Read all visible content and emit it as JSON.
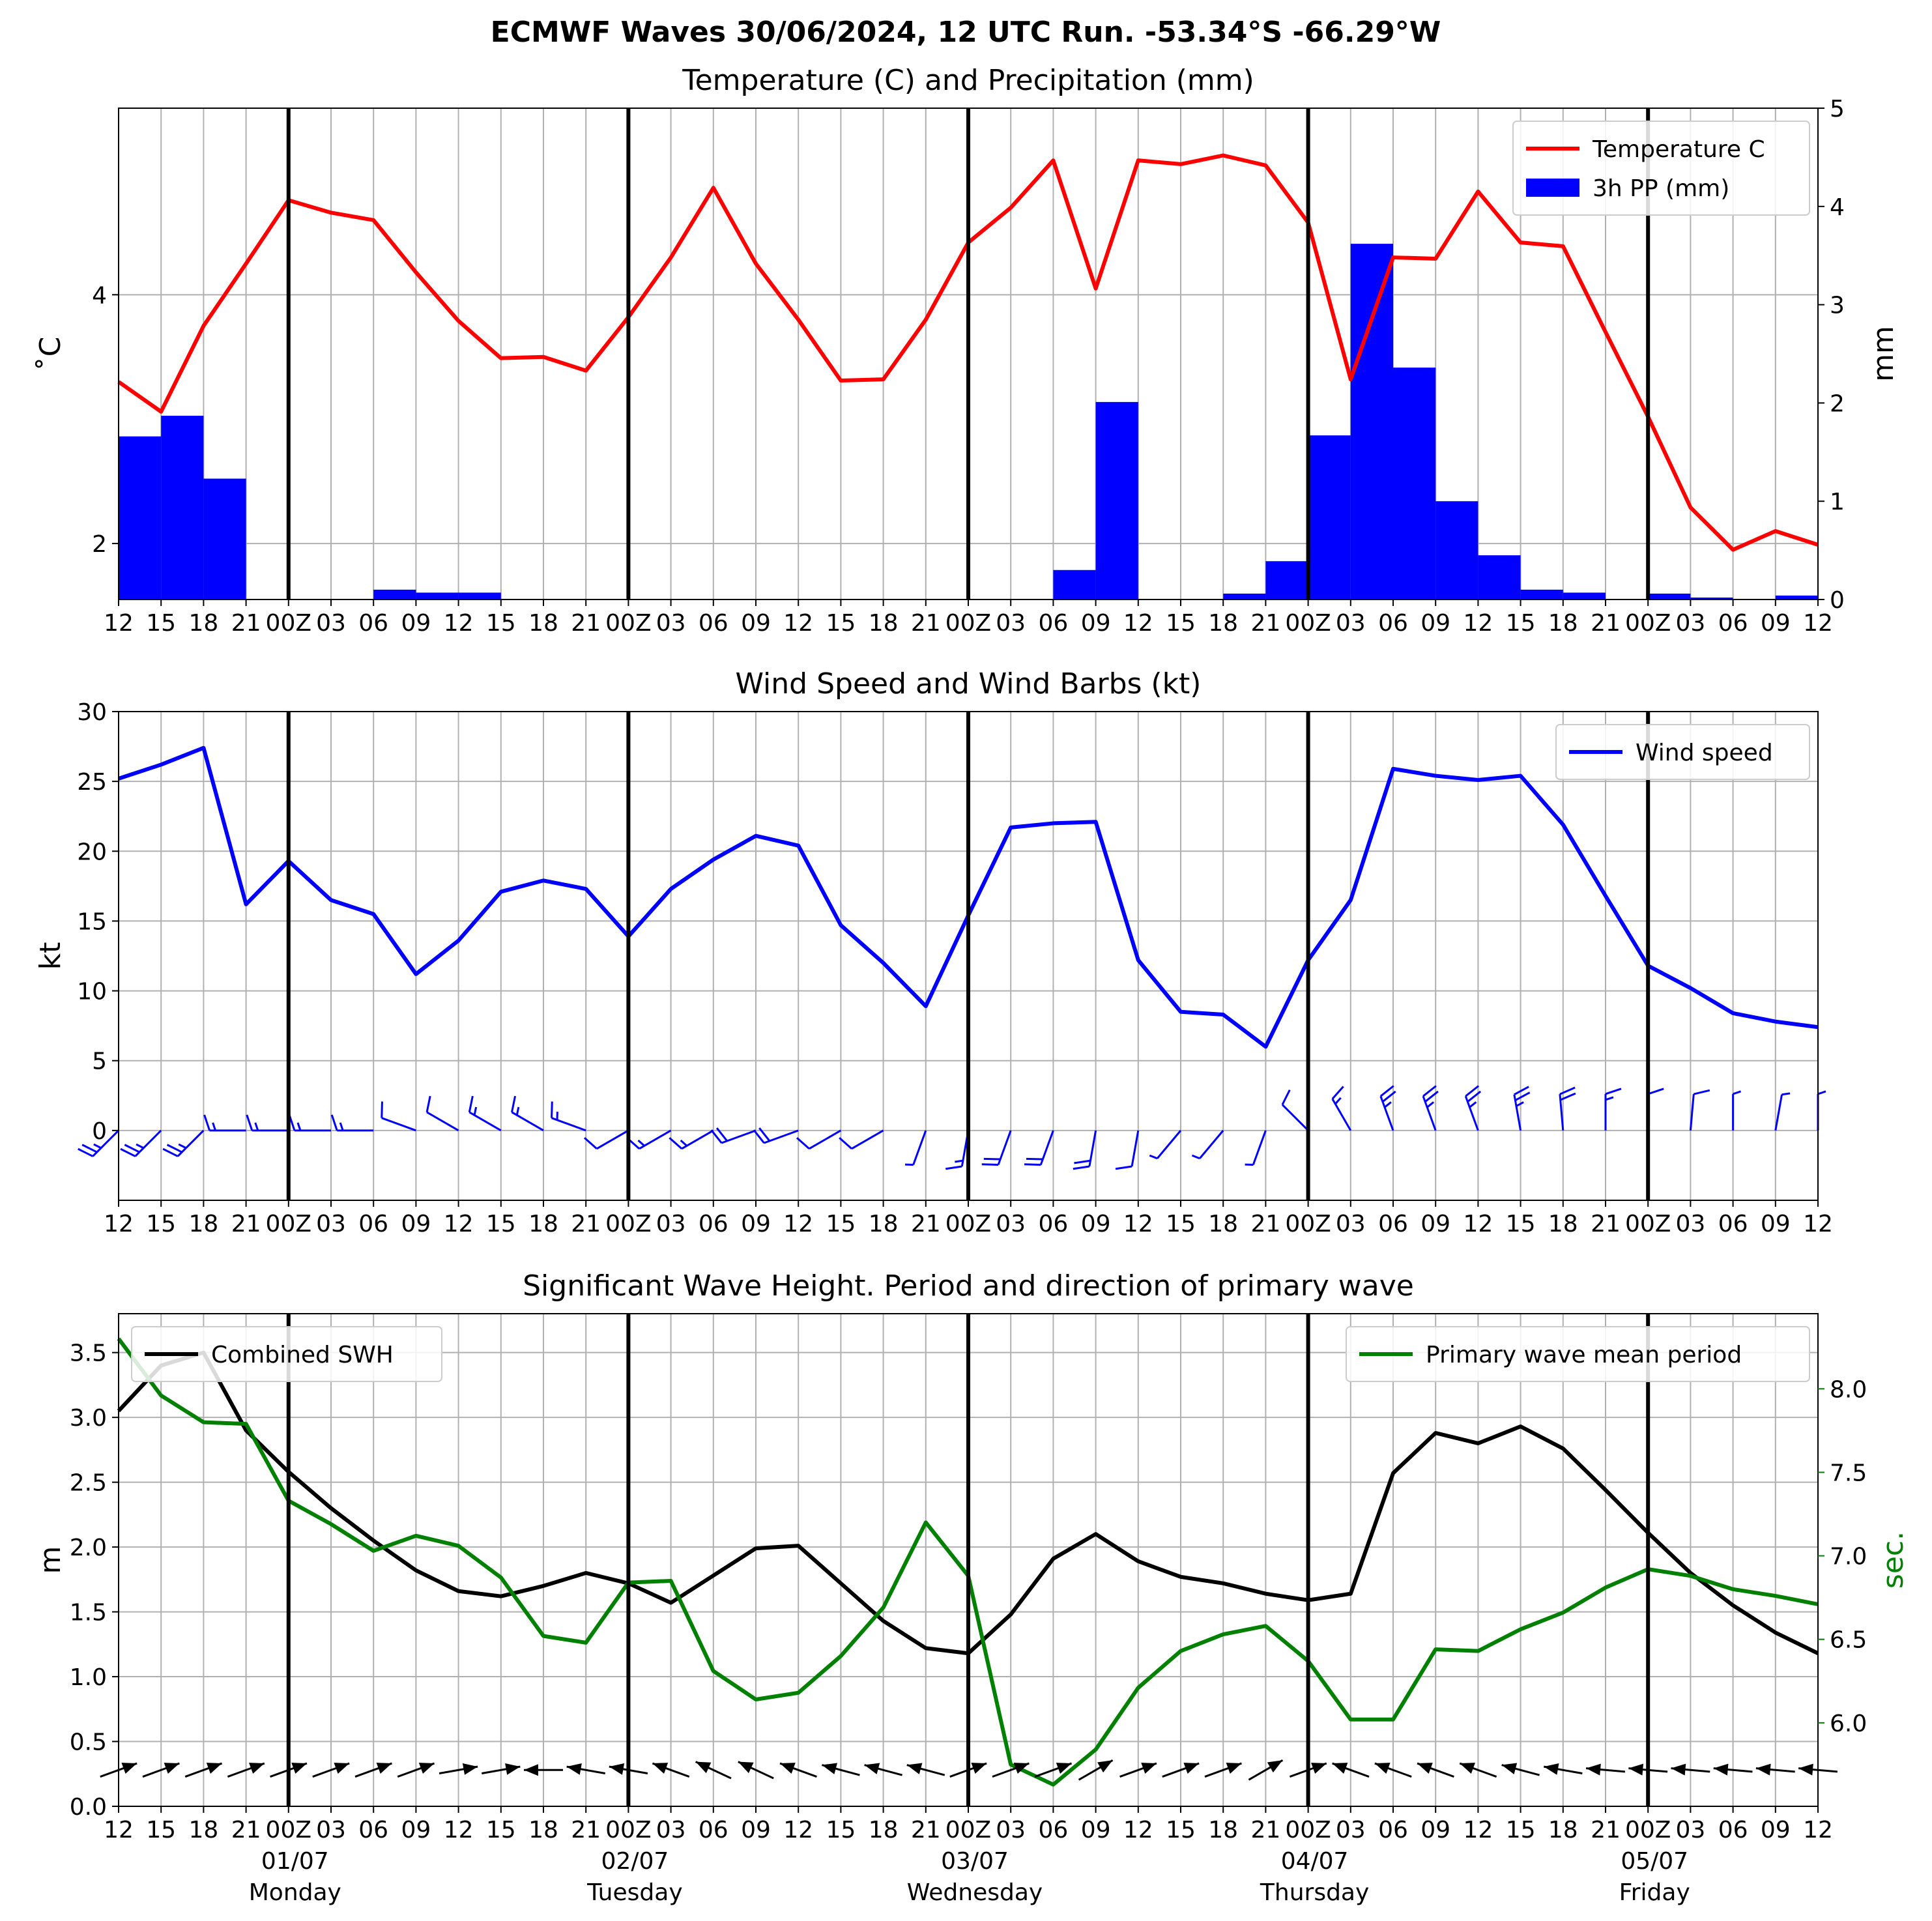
{
  "suptitle": "ECMWF Waves 30/06/2024, 12 UTC Run. -53.34°S -66.29°W",
  "x_tick_labels": [
    "12",
    "15",
    "18",
    "21",
    "00Z",
    "03",
    "06",
    "09",
    "12",
    "15",
    "18",
    "21",
    "00Z",
    "03",
    "06",
    "09",
    "12",
    "15",
    "18",
    "21",
    "00Z",
    "03",
    "06",
    "09",
    "12",
    "15",
    "18",
    "21",
    "00Z",
    "03",
    "06",
    "09",
    "12",
    "15",
    "18",
    "21",
    "00Z",
    "03",
    "06",
    "09",
    "12"
  ],
  "day_labels": [
    {
      "date": "01/07",
      "day": "Monday"
    },
    {
      "date": "02/07",
      "day": "Tuesday"
    },
    {
      "date": "03/07",
      "day": "Wednesday"
    },
    {
      "date": "04/07",
      "day": "Thursday"
    },
    {
      "date": "05/07",
      "day": "Friday"
    }
  ],
  "colors": {
    "temperature": "#ff0000",
    "precip": "#0000ff",
    "wind": "#0000ff",
    "swh": "#000000",
    "period": "#008000",
    "grid": "#b0b0b0"
  },
  "chart_data": [
    {
      "type": "line",
      "title": "Temperature (C) and Precipitation (mm)",
      "ylabel": "˚C",
      "ylabel_right": "mm",
      "ylim": [
        1.55,
        5.5
      ],
      "yticks": [
        2,
        4
      ],
      "ylim_right": [
        0,
        5
      ],
      "yticks_right": [
        0,
        1,
        2,
        3,
        4,
        5
      ],
      "grid": true,
      "legend": "upper right",
      "series": [
        {
          "name": "Temperature C",
          "axis": "left",
          "values": [
            3.3,
            3.06,
            3.75,
            4.25,
            4.76,
            4.66,
            4.6,
            4.18,
            3.79,
            3.49,
            3.5,
            3.39,
            3.82,
            4.3,
            4.86,
            4.25,
            3.8,
            3.31,
            3.32,
            3.8,
            4.42,
            4.7,
            5.08,
            4.05,
            5.08,
            5.05,
            5.12,
            5.04,
            4.58,
            3.32,
            4.3,
            4.29,
            4.83,
            4.42,
            4.39,
            3.7,
            3.02,
            2.29,
            1.95,
            2.1,
            1.99
          ]
        },
        {
          "name": "3h PP (mm)",
          "axis": "right",
          "type": "bar",
          "values": [
            1.66,
            1.87,
            1.23,
            0,
            0,
            0,
            0.1,
            0.07,
            0.07,
            0,
            0,
            0,
            0,
            0,
            0,
            0,
            0,
            0,
            0,
            0,
            0,
            0,
            0.3,
            2.01,
            0,
            0,
            0.06,
            0.39,
            1.67,
            3.62,
            2.36,
            1.0,
            0.45,
            0.1,
            0.07,
            0,
            0.06,
            0.02,
            0,
            0.04
          ]
        }
      ]
    },
    {
      "type": "line",
      "title": "Wind Speed and Wind Barbs (kt)",
      "ylabel": "kt",
      "ylim": [
        -5,
        30
      ],
      "yticks": [
        0,
        5,
        10,
        15,
        20,
        25,
        30
      ],
      "grid": true,
      "legend": "upper right",
      "series": [
        {
          "name": "Wind speed",
          "values": [
            25.2,
            26.2,
            27.4,
            16.2,
            19.3,
            16.5,
            15.5,
            11.2,
            13.6,
            17.1,
            17.9,
            17.3,
            13.9,
            17.3,
            19.4,
            21.1,
            20.4,
            14.7,
            12.0,
            8.9,
            15.4,
            21.7,
            22.0,
            22.1,
            12.2,
            8.5,
            8.3,
            6.0,
            12.2,
            16.5,
            25.9,
            25.4,
            25.1,
            25.4,
            21.9,
            16.8,
            11.8,
            10.2,
            8.4,
            7.8,
            7.4
          ]
        }
      ],
      "barb_directions_deg": [
        225,
        225,
        225,
        270,
        270,
        270,
        270,
        290,
        300,
        300,
        300,
        290,
        240,
        240,
        240,
        250,
        250,
        240,
        240,
        200,
        190,
        200,
        200,
        190,
        190,
        220,
        220,
        200,
        315,
        330,
        340,
        340,
        340,
        350,
        355,
        0,
        0,
        5,
        0,
        10,
        0
      ]
    },
    {
      "type": "line",
      "title": "Significant Wave Height. Period and direction of primary wave",
      "ylabel": "m",
      "ylabel_right": "sec.",
      "ylim": [
        0,
        3.8
      ],
      "yticks": [
        0.0,
        0.5,
        1.0,
        1.5,
        2.0,
        2.5,
        3.0,
        3.5
      ],
      "ylim_right": [
        5.5,
        8.45
      ],
      "yticks_right": [
        6.0,
        6.5,
        7.0,
        7.5,
        8.0
      ],
      "grid": true,
      "series": [
        {
          "name": "Combined SWH",
          "axis": "left",
          "legend": "upper left",
          "values": [
            3.05,
            3.4,
            3.5,
            2.9,
            2.58,
            2.3,
            2.05,
            1.82,
            1.66,
            1.62,
            1.7,
            1.8,
            1.72,
            1.57,
            1.78,
            1.99,
            2.01,
            1.72,
            1.43,
            1.22,
            1.18,
            1.48,
            1.91,
            2.1,
            1.89,
            1.77,
            1.72,
            1.64,
            1.59,
            1.64,
            2.57,
            2.88,
            2.8,
            2.93,
            2.76,
            2.44,
            2.11,
            1.8,
            1.55,
            1.34,
            1.18
          ]
        },
        {
          "name": "Primary wave mean period",
          "axis": "right",
          "legend": "upper right",
          "values": [
            8.3,
            7.96,
            7.8,
            7.79,
            7.33,
            7.19,
            7.03,
            7.12,
            7.06,
            6.87,
            6.52,
            6.48,
            6.84,
            6.85,
            6.31,
            6.14,
            6.18,
            6.4,
            6.69,
            7.2,
            6.88,
            5.75,
            5.63,
            5.84,
            6.21,
            6.43,
            6.53,
            6.58,
            6.37,
            6.02,
            6.02,
            6.44,
            6.43,
            6.56,
            6.66,
            6.81,
            6.92,
            6.88,
            6.8,
            6.76,
            6.71
          ]
        }
      ],
      "wave_directions_deg": [
        70,
        70,
        70,
        70,
        70,
        70,
        70,
        70,
        80,
        80,
        270,
        280,
        280,
        290,
        295,
        295,
        290,
        285,
        285,
        285,
        70,
        70,
        70,
        60,
        70,
        70,
        70,
        60,
        70,
        290,
        290,
        290,
        290,
        285,
        280,
        275,
        275,
        275,
        275,
        275,
        275
      ]
    }
  ]
}
